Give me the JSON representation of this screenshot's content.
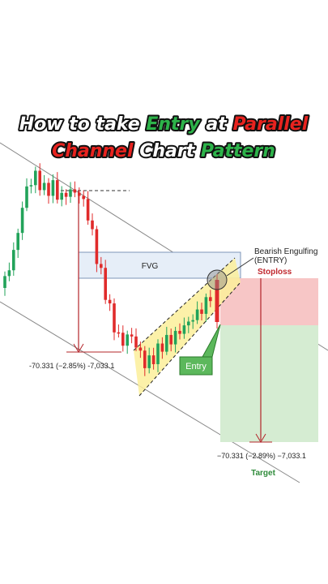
{
  "title": {
    "line1": [
      "How to take ",
      "Entry",
      " at ",
      "Parallel"
    ],
    "line2": [
      "Channel",
      " Chart ",
      "Pattern"
    ]
  },
  "labels": {
    "fvg": "FVG",
    "bearish": "Bearish Engulfing",
    "bearish_sub": "(ENTRY)",
    "stoploss": "Stoploss",
    "entry": "Entry",
    "measure_left": "-70.331 (−2.85%) -7,033.1",
    "measure_right": "−70.331 (−2.89%) −7,033.1",
    "target": "Target"
  }
}
